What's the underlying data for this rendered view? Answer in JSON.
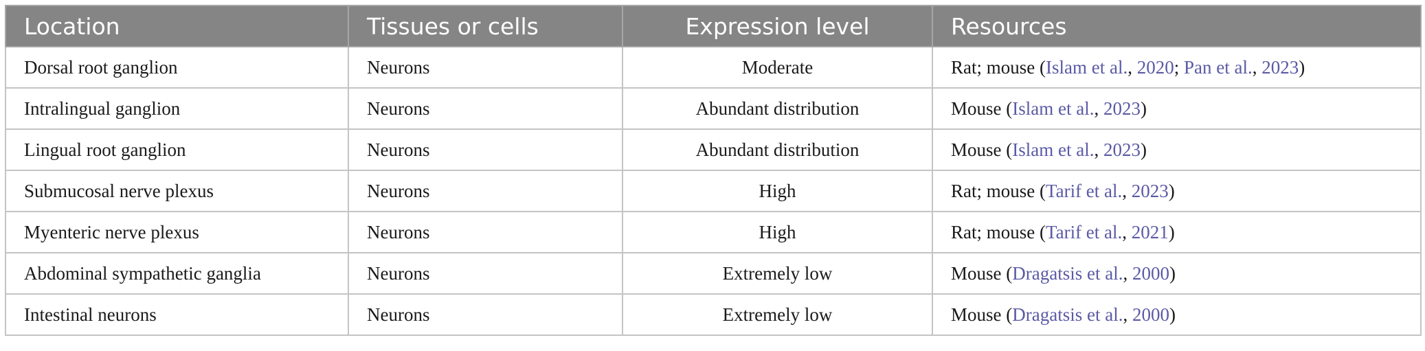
{
  "table": {
    "headers": [
      "Location",
      "Tissues or cells",
      "Expression level",
      "Resources"
    ],
    "rows": [
      {
        "location": "Dorsal root ganglion",
        "tissue": "Neurons",
        "level": "Moderate",
        "resources": [
          {
            "text": "Rat; mouse (",
            "cite": false
          },
          {
            "text": "Islam et al.",
            "cite": true
          },
          {
            "text": ", ",
            "cite": false
          },
          {
            "text": "2020",
            "cite": true
          },
          {
            "text": "; ",
            "cite": false
          },
          {
            "text": "Pan et al.",
            "cite": true
          },
          {
            "text": ", ",
            "cite": false
          },
          {
            "text": "2023",
            "cite": true
          },
          {
            "text": ")",
            "cite": false
          }
        ]
      },
      {
        "location": "Intralingual ganglion",
        "tissue": "Neurons",
        "level": "Abundant distribution",
        "resources": [
          {
            "text": "Mouse (",
            "cite": false
          },
          {
            "text": "Islam et al.",
            "cite": true
          },
          {
            "text": ", ",
            "cite": false
          },
          {
            "text": "2023",
            "cite": true
          },
          {
            "text": ")",
            "cite": false
          }
        ]
      },
      {
        "location": "Lingual root ganglion",
        "tissue": "Neurons",
        "level": "Abundant distribution",
        "resources": [
          {
            "text": "Mouse (",
            "cite": false
          },
          {
            "text": "Islam et al.",
            "cite": true
          },
          {
            "text": ", ",
            "cite": false
          },
          {
            "text": "2023",
            "cite": true
          },
          {
            "text": ")",
            "cite": false
          }
        ]
      },
      {
        "location": "Submucosal nerve plexus",
        "tissue": "Neurons",
        "level": "High",
        "resources": [
          {
            "text": "Rat; mouse (",
            "cite": false
          },
          {
            "text": "Tarif et al.",
            "cite": true
          },
          {
            "text": ", ",
            "cite": false
          },
          {
            "text": "2023",
            "cite": true
          },
          {
            "text": ")",
            "cite": false
          }
        ]
      },
      {
        "location": "Myenteric nerve plexus",
        "tissue": "Neurons",
        "level": "High",
        "resources": [
          {
            "text": "Rat; mouse (",
            "cite": false
          },
          {
            "text": "Tarif et al.",
            "cite": true
          },
          {
            "text": ", ",
            "cite": false
          },
          {
            "text": "2021",
            "cite": true
          },
          {
            "text": ")",
            "cite": false
          }
        ]
      },
      {
        "location": "Abdominal sympathetic ganglia",
        "tissue": "Neurons",
        "level": "Extremely low",
        "resources": [
          {
            "text": "Mouse (",
            "cite": false
          },
          {
            "text": "Dragatsis et al.",
            "cite": true
          },
          {
            "text": ", ",
            "cite": false
          },
          {
            "text": "2000",
            "cite": true
          },
          {
            "text": ")",
            "cite": false
          }
        ]
      },
      {
        "location": "Intestinal neurons",
        "tissue": "Neurons",
        "level": "Extremely low",
        "resources": [
          {
            "text": "Mouse (",
            "cite": false
          },
          {
            "text": "Dragatsis et al.",
            "cite": true
          },
          {
            "text": ", ",
            "cite": false
          },
          {
            "text": "2000",
            "cite": true
          },
          {
            "text": ")",
            "cite": false
          }
        ]
      }
    ]
  },
  "colors": {
    "header_bg": "#858585",
    "header_text": "#ffffff",
    "cite_link": "#5a5aa6",
    "border": "#c4c4c4"
  }
}
